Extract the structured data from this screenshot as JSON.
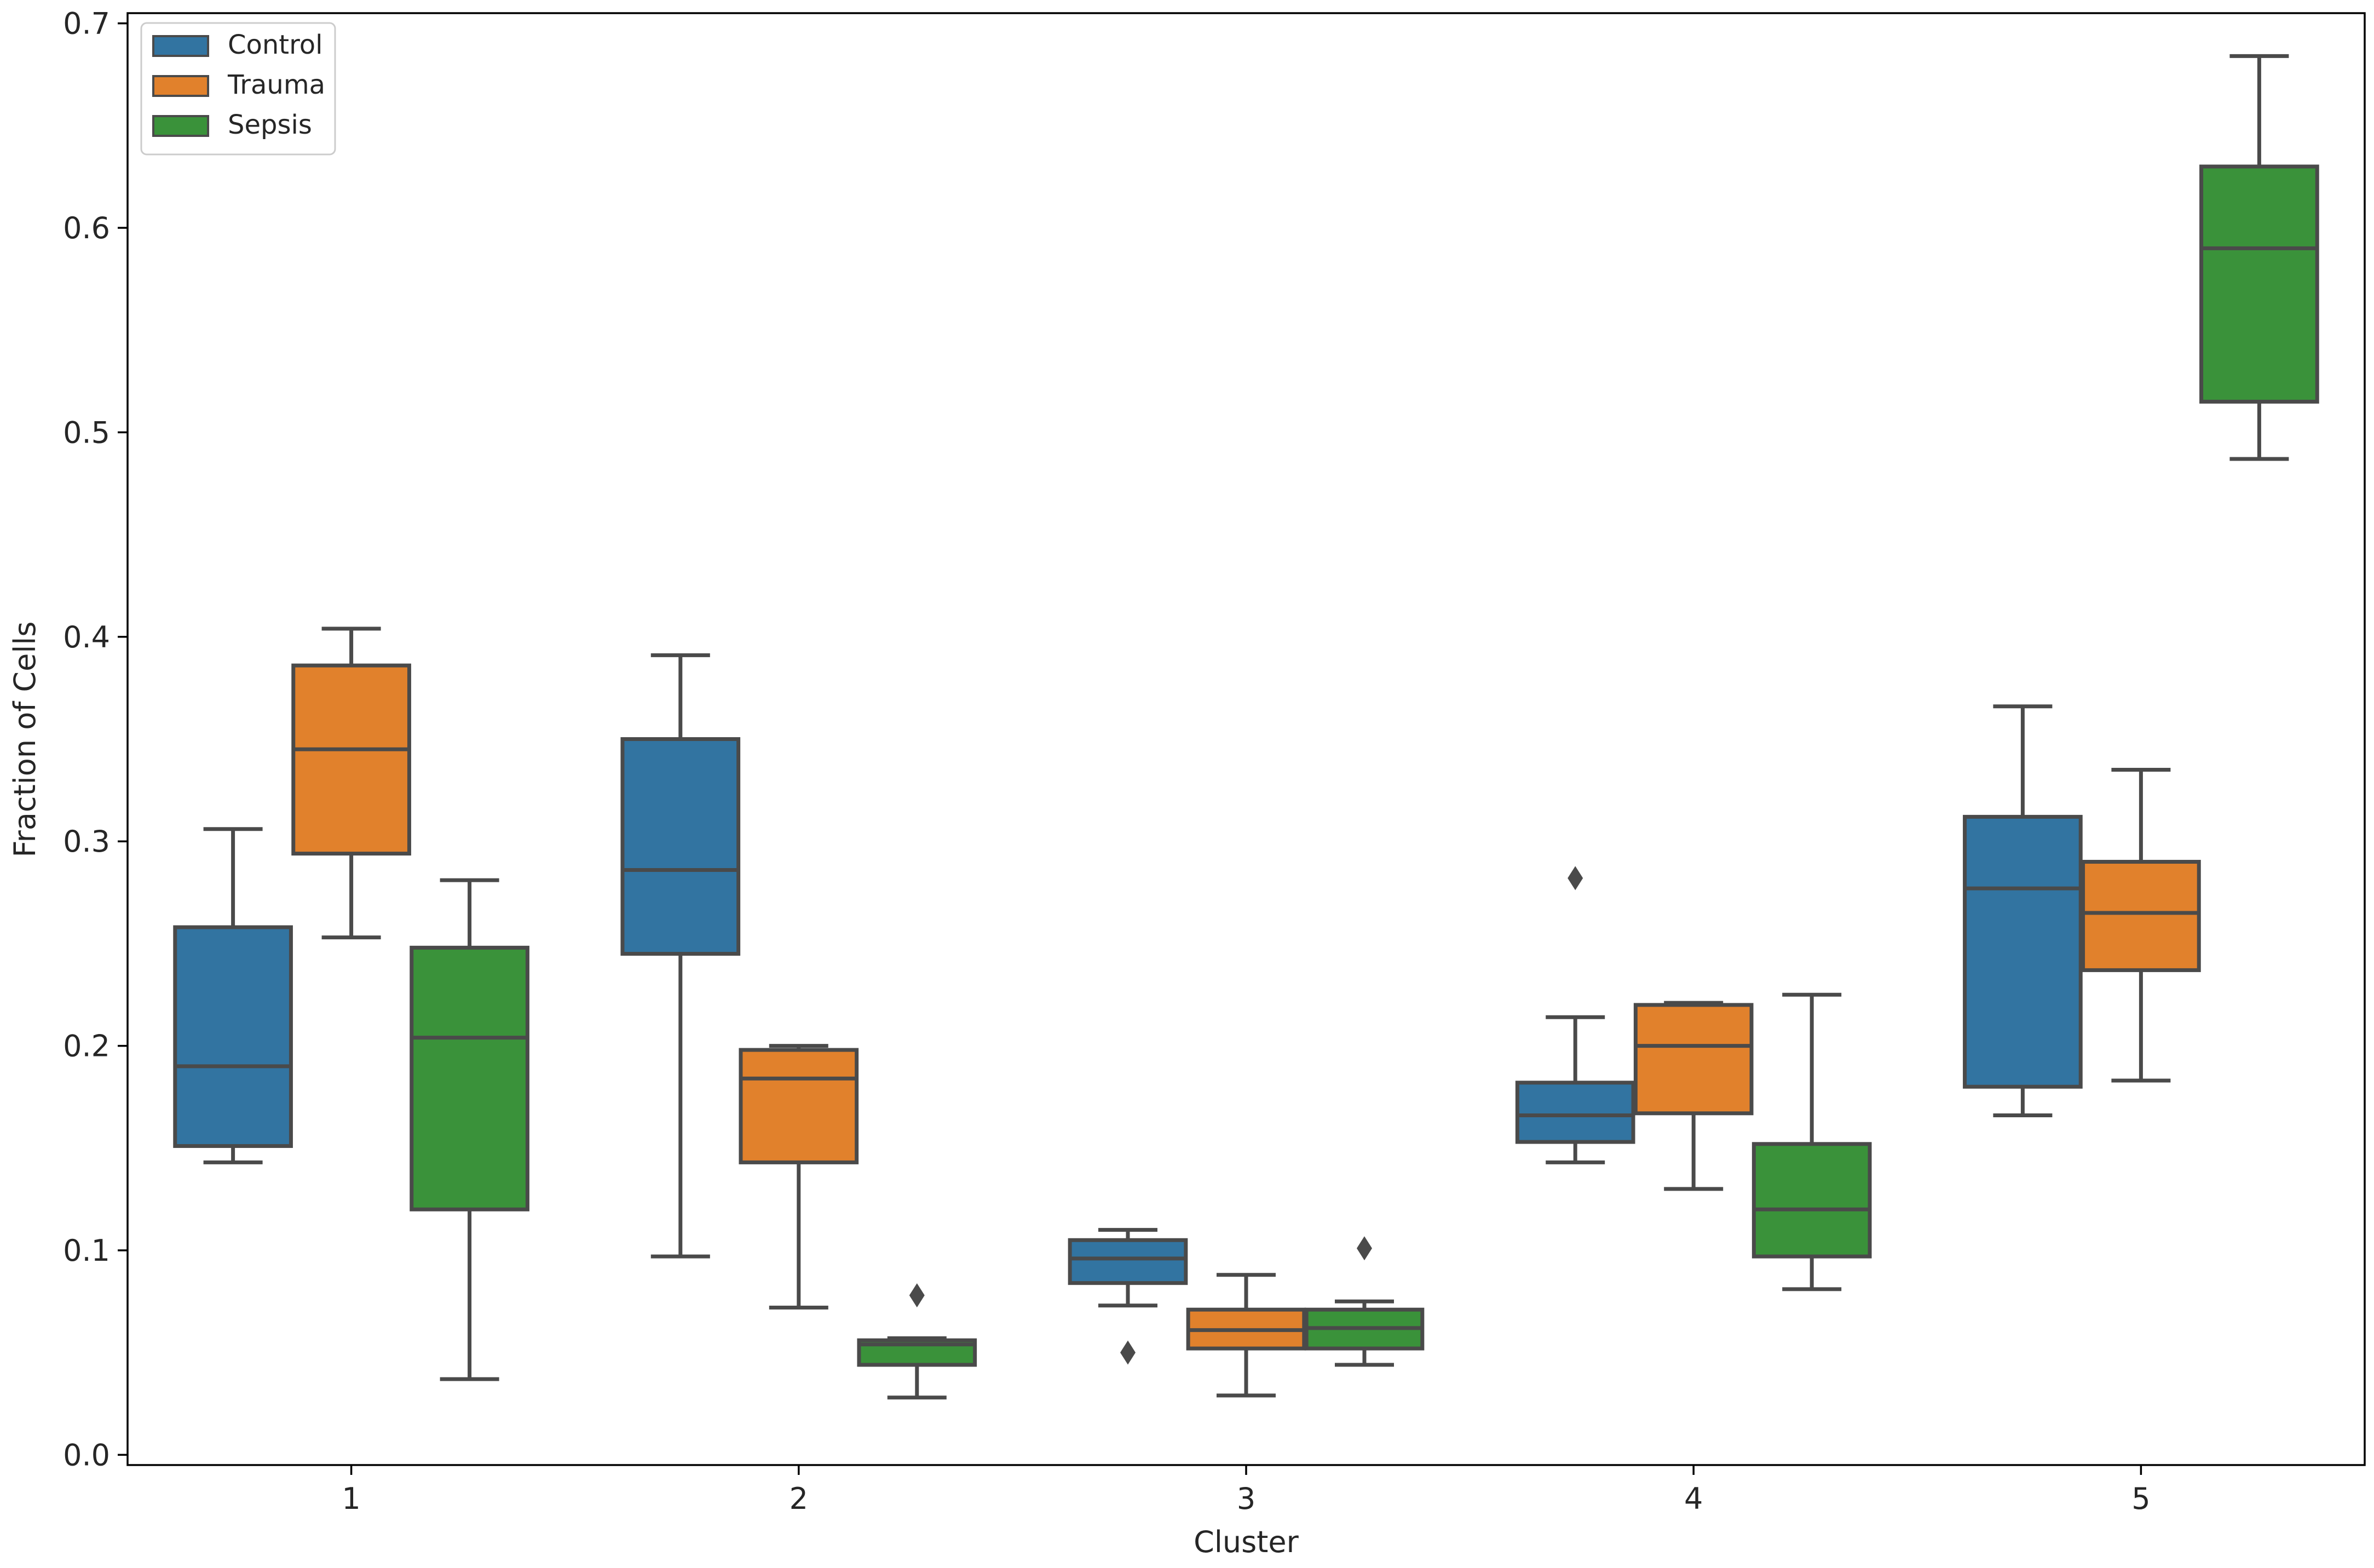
{
  "chart_data": {
    "type": "boxplot",
    "title": "",
    "xlabel": "Cluster",
    "ylabel": "Fraction of Cells",
    "ylim": [
      -0.005,
      0.705
    ],
    "yticks": [
      "0.0",
      "0.1",
      "0.2",
      "0.3",
      "0.4",
      "0.5",
      "0.6",
      "0.7"
    ],
    "ytick_values": [
      0.0,
      0.1,
      0.2,
      0.3,
      0.4,
      0.5,
      0.6,
      0.7
    ],
    "categories": [
      "1",
      "2",
      "3",
      "4",
      "5"
    ],
    "legend_position": "top-left",
    "grid": false,
    "series": [
      {
        "name": "Control",
        "color": "#3274a1",
        "boxes": [
          {
            "whisker_low": 0.143,
            "q1": 0.151,
            "median": 0.19,
            "q3": 0.258,
            "whisker_high": 0.306,
            "outliers": []
          },
          {
            "whisker_low": 0.097,
            "q1": 0.245,
            "median": 0.286,
            "q3": 0.35,
            "whisker_high": 0.391,
            "outliers": []
          },
          {
            "whisker_low": 0.073,
            "q1": 0.084,
            "median": 0.096,
            "q3": 0.105,
            "whisker_high": 0.11,
            "outliers": [
              0.05
            ]
          },
          {
            "whisker_low": 0.143,
            "q1": 0.153,
            "median": 0.166,
            "q3": 0.182,
            "whisker_high": 0.214,
            "outliers": [
              0.282
            ]
          },
          {
            "whisker_low": 0.166,
            "q1": 0.18,
            "median": 0.277,
            "q3": 0.312,
            "whisker_high": 0.366,
            "outliers": []
          }
        ]
      },
      {
        "name": "Trauma",
        "color": "#e1812c",
        "boxes": [
          {
            "whisker_low": 0.253,
            "q1": 0.294,
            "median": 0.345,
            "q3": 0.386,
            "whisker_high": 0.404,
            "outliers": []
          },
          {
            "whisker_low": 0.072,
            "q1": 0.143,
            "median": 0.184,
            "q3": 0.198,
            "whisker_high": 0.2,
            "outliers": []
          },
          {
            "whisker_low": 0.029,
            "q1": 0.052,
            "median": 0.061,
            "q3": 0.071,
            "whisker_high": 0.088,
            "outliers": []
          },
          {
            "whisker_low": 0.13,
            "q1": 0.167,
            "median": 0.2,
            "q3": 0.22,
            "whisker_high": 0.221,
            "outliers": []
          },
          {
            "whisker_low": 0.183,
            "q1": 0.237,
            "median": 0.265,
            "q3": 0.29,
            "whisker_high": 0.335,
            "outliers": []
          }
        ]
      },
      {
        "name": "Sepsis",
        "color": "#3a923a",
        "boxes": [
          {
            "whisker_low": 0.037,
            "q1": 0.12,
            "median": 0.204,
            "q3": 0.248,
            "whisker_high": 0.281,
            "outliers": []
          },
          {
            "whisker_low": 0.028,
            "q1": 0.044,
            "median": 0.054,
            "q3": 0.056,
            "whisker_high": 0.057,
            "outliers": [
              0.078
            ]
          },
          {
            "whisker_low": 0.044,
            "q1": 0.052,
            "median": 0.062,
            "q3": 0.071,
            "whisker_high": 0.075,
            "outliers": [
              0.101
            ]
          },
          {
            "whisker_low": 0.081,
            "q1": 0.097,
            "median": 0.12,
            "q3": 0.152,
            "whisker_high": 0.225,
            "outliers": []
          },
          {
            "whisker_low": 0.487,
            "q1": 0.515,
            "median": 0.59,
            "q3": 0.63,
            "whisker_high": 0.684,
            "outliers": []
          }
        ]
      }
    ]
  },
  "style": {
    "line_color": "#4a4a4a",
    "axis_color": "#000000",
    "background": "#ffffff"
  }
}
